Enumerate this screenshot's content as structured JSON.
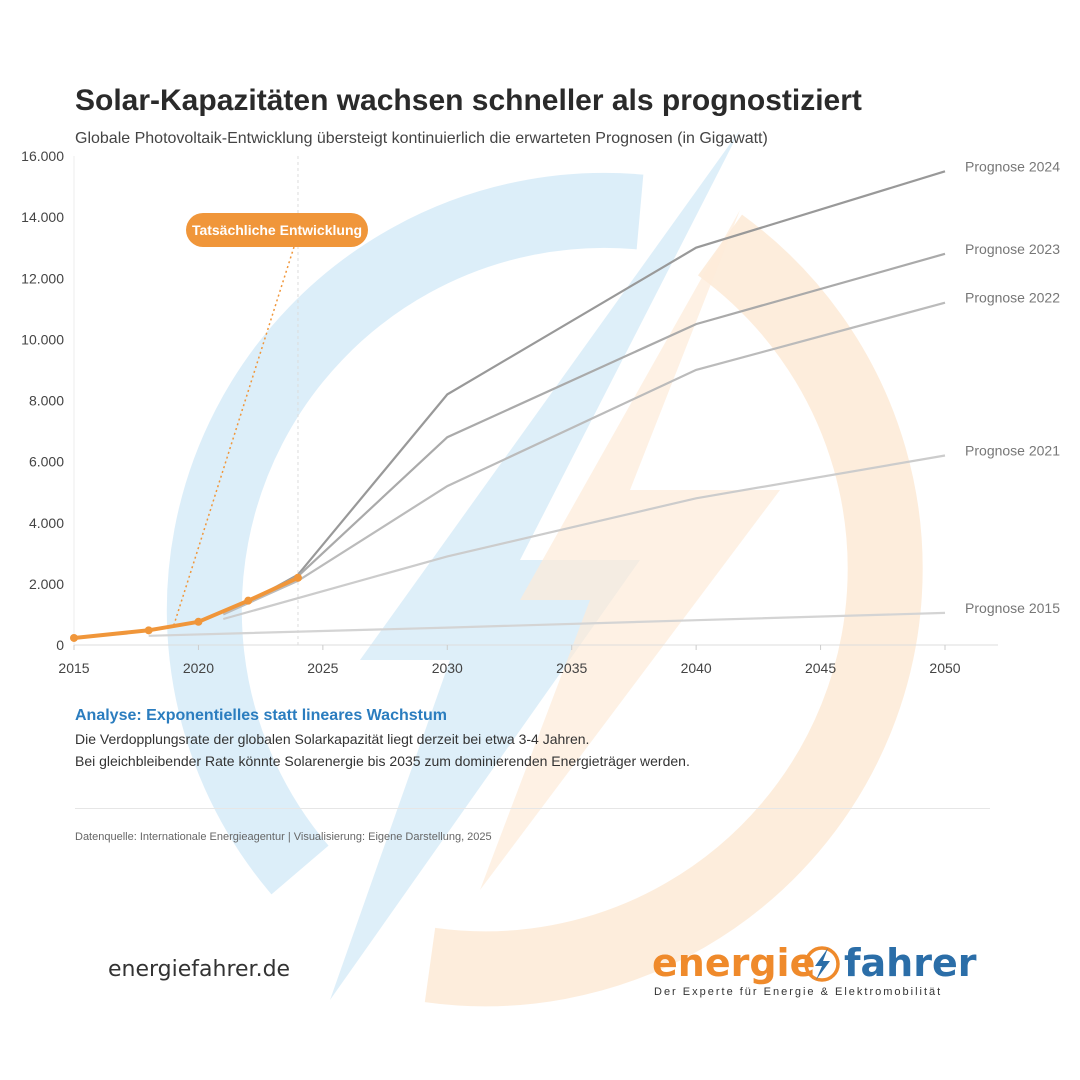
{
  "header": {
    "title": "Solar-Kapazitäten wachsen schneller als prognostiziert",
    "subtitle": "Globale Photovoltaik-Entwicklung übersteigt kontinuierlich die erwarteten Prognosen (in Gigawatt)"
  },
  "chart_data": {
    "type": "line",
    "title": "Solar-Kapazitäten wachsen schneller als prognostiziert",
    "subtitle": "Globale Photovoltaik-Entwicklung übersteigt kontinuierlich die erwarteten Prognosen (in Gigawatt)",
    "xlabel": "",
    "ylabel": "",
    "xlim": [
      2015,
      2052
    ],
    "ylim": [
      0,
      16000
    ],
    "x_ticks": [
      2015,
      2020,
      2025,
      2030,
      2035,
      2040,
      2045,
      2050
    ],
    "y_ticks": [
      0,
      2000,
      4000,
      6000,
      8000,
      10000,
      12000,
      14000,
      16000
    ],
    "y_tick_labels": [
      "0",
      "2.000",
      "4.000",
      "6.000",
      "8.000",
      "10.000",
      "12.000",
      "14.000",
      "16.000"
    ],
    "grid": false,
    "reference_line_x": 2024,
    "actual": {
      "label": "Tatsächliche Entwicklung",
      "color": "#f0963a",
      "points": [
        [
          2015,
          230
        ],
        [
          2018,
          480
        ],
        [
          2020,
          760
        ],
        [
          2022,
          1450
        ],
        [
          2024,
          2200
        ]
      ]
    },
    "series": [
      {
        "name": "Prognose 2024",
        "color": "#999999",
        "points": [
          [
            2023,
            1850
          ],
          [
            2024,
            2300
          ],
          [
            2030,
            8200
          ],
          [
            2040,
            13000
          ],
          [
            2050,
            15500
          ]
        ]
      },
      {
        "name": "Prognose 2023",
        "color": "#aaaaaa",
        "points": [
          [
            2022,
            1450
          ],
          [
            2024,
            2250
          ],
          [
            2030,
            6800
          ],
          [
            2040,
            10500
          ],
          [
            2050,
            12800
          ]
        ]
      },
      {
        "name": "Prognose 2022",
        "color": "#bbbbbb",
        "points": [
          [
            2021,
            1000
          ],
          [
            2024,
            2100
          ],
          [
            2030,
            5200
          ],
          [
            2040,
            9000
          ],
          [
            2050,
            11200
          ]
        ]
      },
      {
        "name": "Prognose 2021",
        "color": "#cccccc",
        "points": [
          [
            2021,
            850
          ],
          [
            2030,
            2900
          ],
          [
            2040,
            4800
          ],
          [
            2050,
            6200
          ]
        ]
      },
      {
        "name": "Prognose 2015",
        "color": "#d4d4d4",
        "points": [
          [
            2018,
            300
          ],
          [
            2030,
            570
          ],
          [
            2040,
            810
          ],
          [
            2050,
            1050
          ]
        ]
      }
    ]
  },
  "analysis": {
    "heading": "Analyse: Exponentielles statt lineares Wachstum",
    "line1": "Die Verdopplungsrate der globalen Solarkapazität liegt derzeit bei etwa 3-4 Jahren.",
    "line2": "Bei gleichbleibender Rate könnte Solarenergie bis 2035 zum dominierenden Energieträger werden."
  },
  "source": "Datenquelle: Internationale Energieagentur | Visualisierung: Eigene Darstellung, 2025",
  "footer": {
    "site": "energiefahrer.de",
    "logo_left": "energie",
    "logo_right": "fahrer",
    "logo_icon": "lightning-circle-icon",
    "tagline": "Der Experte für Energie & Elektromobilität",
    "colors": {
      "orange": "#ef8a2b",
      "blue": "#2b6ea8",
      "light_blue": "#d6ebf7",
      "light_orange": "#fde8d3"
    }
  }
}
